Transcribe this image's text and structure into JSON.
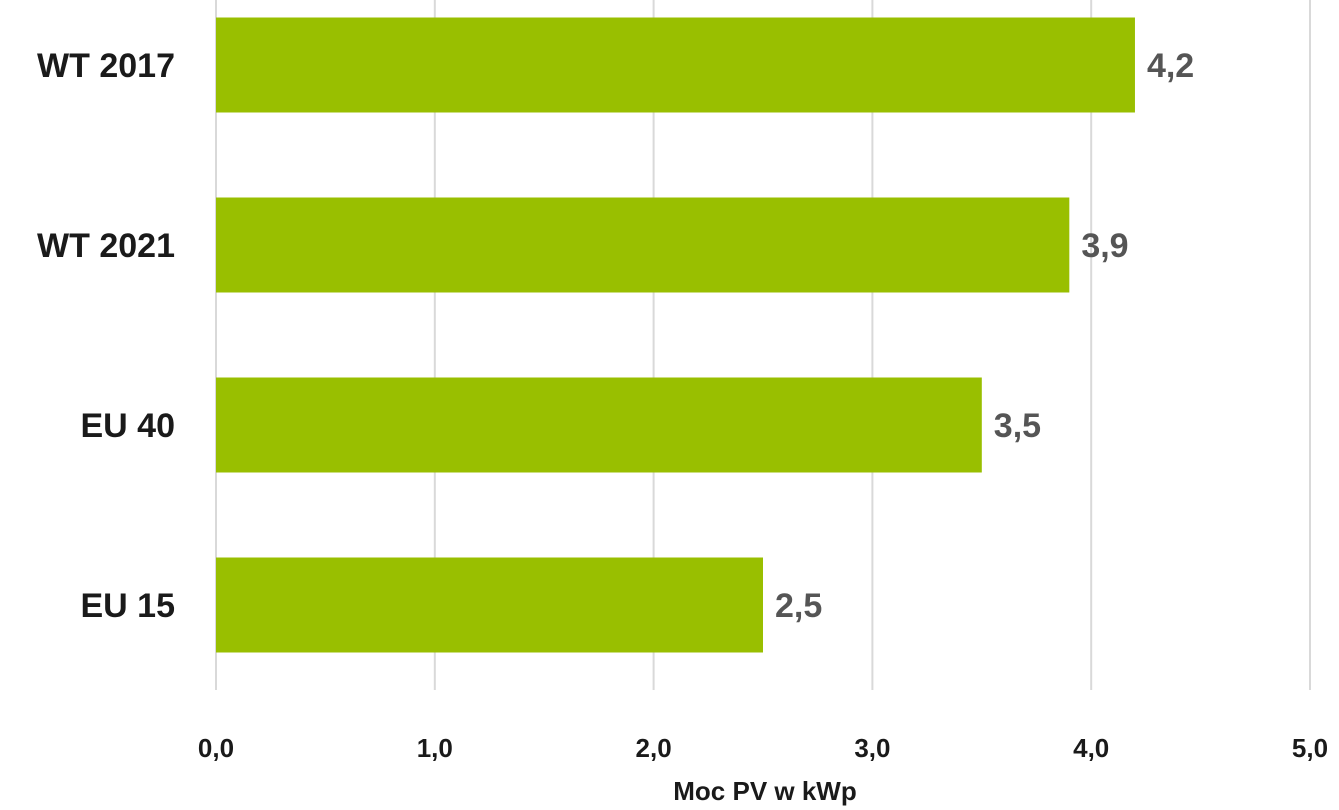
{
  "chart_data": {
    "type": "bar",
    "orientation": "horizontal",
    "categories": [
      "WT 2017",
      "WT 2021",
      "EU 40",
      "EU 15"
    ],
    "values": [
      4.2,
      3.9,
      3.5,
      2.5
    ],
    "value_labels": [
      "4,2",
      "3,9",
      "3,5",
      "2,5"
    ],
    "xlabel": "Moc PV w kWp",
    "ylabel": "",
    "xlim": [
      0,
      5
    ],
    "x_ticks": [
      0,
      1,
      2,
      3,
      4,
      5
    ],
    "x_tick_labels": [
      "0,0",
      "1,0",
      "2,0",
      "3,0",
      "4,0",
      "5,0"
    ],
    "grid": true,
    "bar_color": "#99bf00"
  }
}
